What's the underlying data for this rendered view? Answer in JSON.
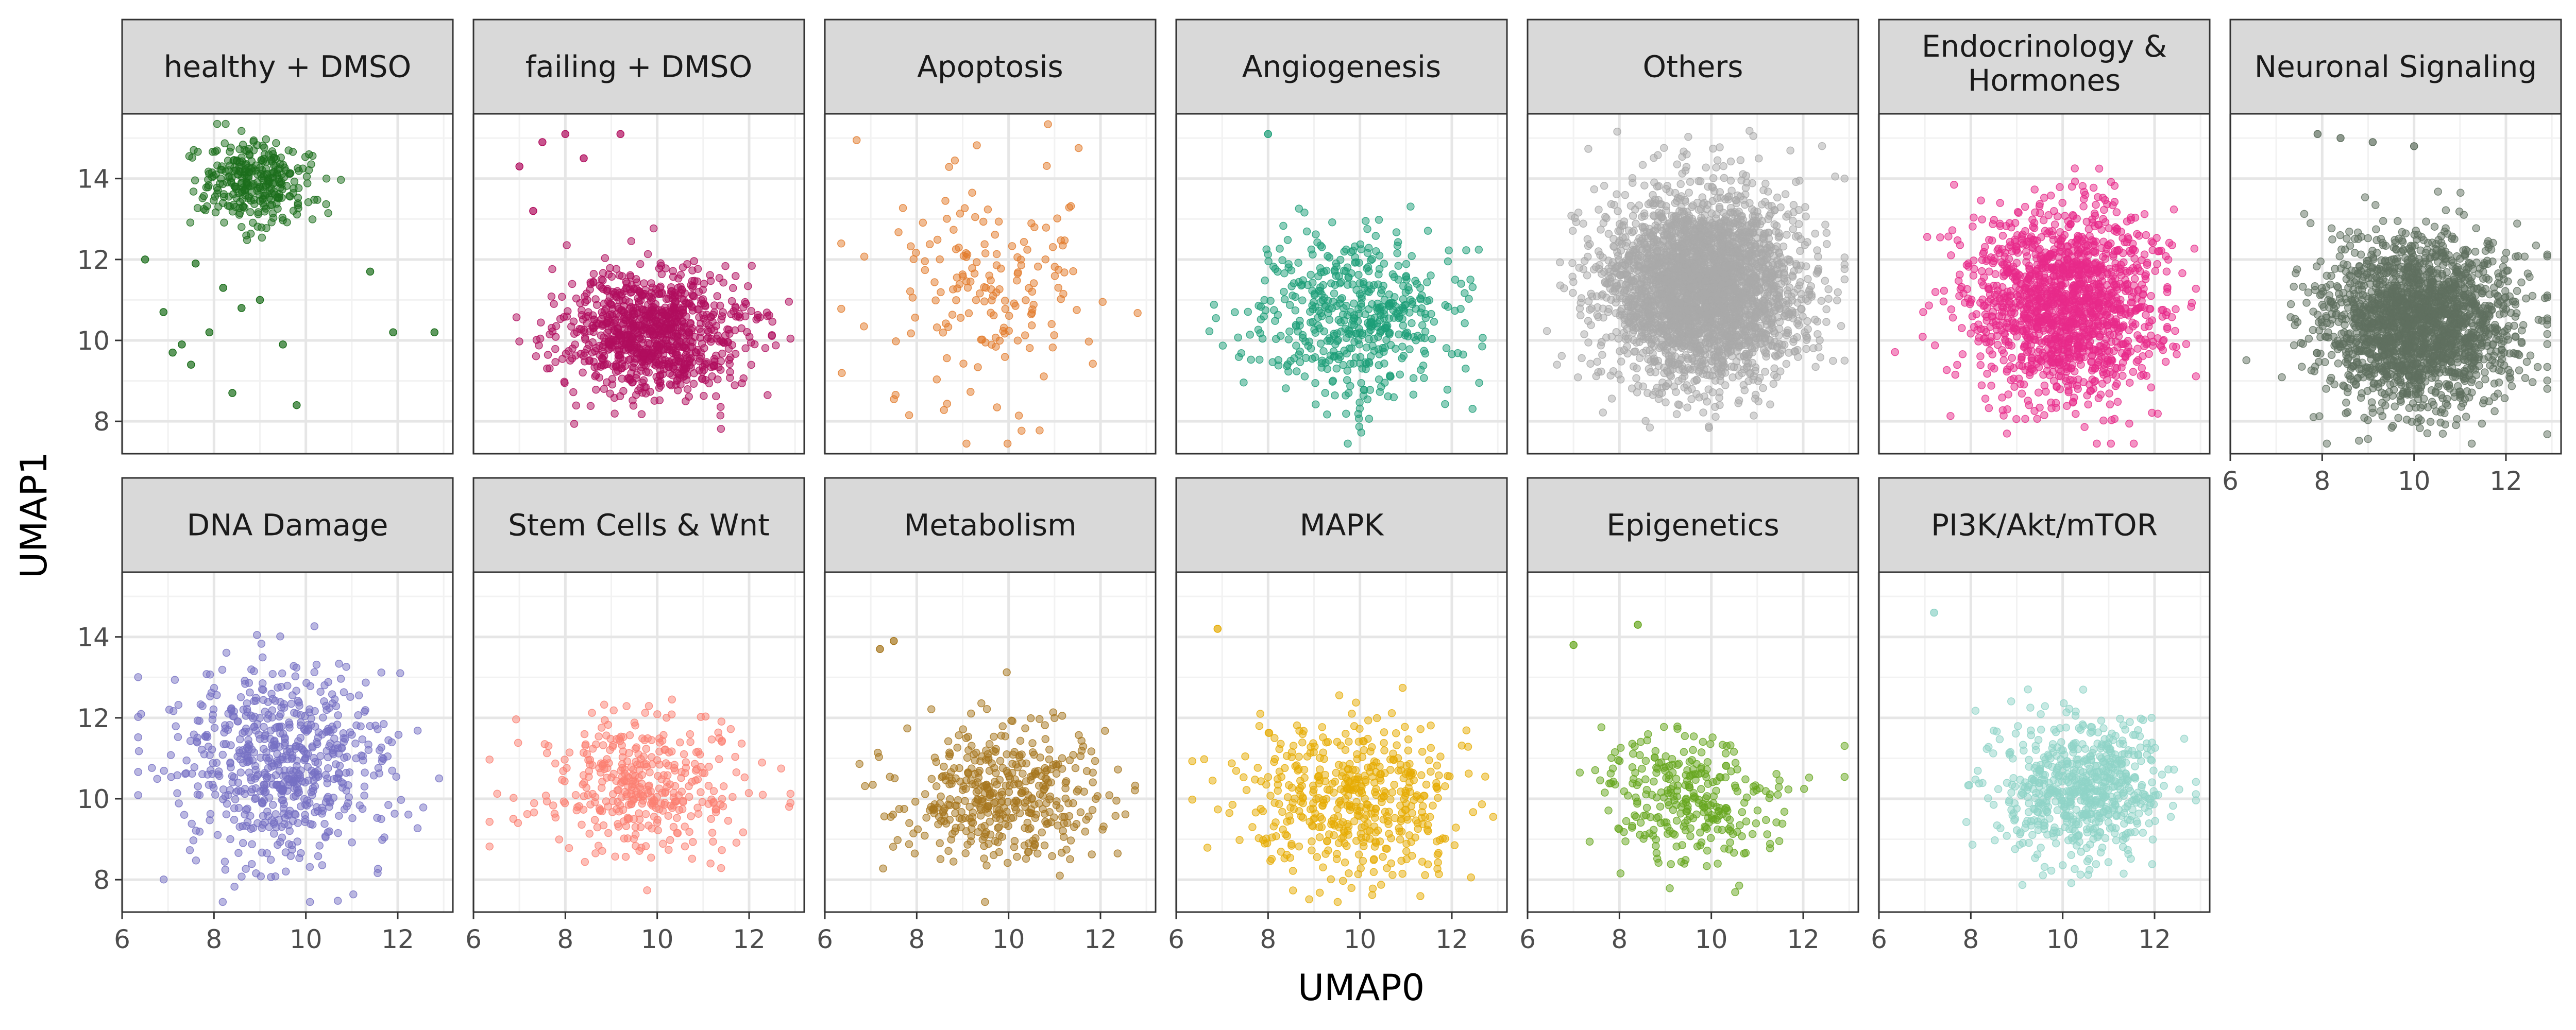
{
  "chart_data": {
    "type": "scatter",
    "xlabel": "UMAP0",
    "ylabel": "UMAP1",
    "xlim": [
      6,
      13.2
    ],
    "ylim": [
      7.2,
      15.6
    ],
    "x_ticks": [
      6,
      8,
      10,
      12
    ],
    "y_ticks": [
      8,
      10,
      12,
      14
    ],
    "grid": true,
    "facet_layout": "7 columns, 2 rows; shared axes",
    "panels": [
      {
        "title": "healthy + DMSO",
        "color": "#1b6e1b",
        "point_count": 300,
        "centroid": [
          8.9,
          13.9
        ],
        "spread": [
          0.8,
          0.75
        ],
        "outliers": [
          [
            6.5,
            12.0
          ],
          [
            6.9,
            10.7
          ],
          [
            7.1,
            9.7
          ],
          [
            7.3,
            9.9
          ],
          [
            7.5,
            9.4
          ],
          [
            7.6,
            11.9
          ],
          [
            7.9,
            10.2
          ],
          [
            8.2,
            11.3
          ],
          [
            8.4,
            8.7
          ],
          [
            8.6,
            10.8
          ],
          [
            9.0,
            11.0
          ],
          [
            9.5,
            9.9
          ],
          [
            9.8,
            8.4
          ],
          [
            11.4,
            11.7
          ],
          [
            11.9,
            10.2
          ],
          [
            12.8,
            10.2
          ]
        ]
      },
      {
        "title": "failing + DMSO",
        "color": "#b00d5e",
        "point_count": 950,
        "centroid": [
          9.9,
          10.2
        ],
        "spread": [
          1.4,
          1.1
        ],
        "outliers": [
          [
            7.0,
            14.3
          ],
          [
            7.5,
            14.9
          ],
          [
            8.0,
            15.1
          ],
          [
            8.4,
            14.5
          ],
          [
            9.2,
            15.1
          ],
          [
            7.3,
            13.2
          ]
        ]
      },
      {
        "title": "Apoptosis",
        "color": "#e27a2a",
        "point_count": 170,
        "centroid": [
          9.7,
          11.2
        ],
        "spread": [
          1.6,
          2.0
        ],
        "outliers": []
      },
      {
        "title": "Angiogenesis",
        "color": "#1b9e77",
        "point_count": 500,
        "centroid": [
          9.8,
          10.6
        ],
        "spread": [
          1.6,
          1.4
        ],
        "outliers": [
          [
            8.0,
            15.1
          ]
        ]
      },
      {
        "title": "Others",
        "color": "#a9a9a9",
        "point_count": 3000,
        "centroid": [
          9.8,
          11.3
        ],
        "spread": [
          1.5,
          1.6
        ],
        "outliers": []
      },
      {
        "title": "Endocrinology & Hormones",
        "color": "#e7298a",
        "point_count": 1500,
        "centroid": [
          10.0,
          10.9
        ],
        "spread": [
          1.5,
          1.6
        ],
        "outliers": []
      },
      {
        "title": "Neuronal Signaling",
        "color": "#5f6f5f",
        "point_count": 2000,
        "centroid": [
          10.1,
          10.4
        ],
        "spread": [
          1.5,
          1.4
        ],
        "outliers": [
          [
            7.9,
            15.1
          ],
          [
            8.4,
            15.0
          ],
          [
            9.1,
            14.9
          ],
          [
            10.0,
            14.8
          ]
        ]
      },
      {
        "title": "DNA Damage",
        "color": "#7570c3",
        "point_count": 650,
        "centroid": [
          9.5,
          10.8
        ],
        "spread": [
          1.6,
          1.7
        ],
        "outliers": []
      },
      {
        "title": "Stem Cells & Wnt",
        "color": "#fb8072",
        "point_count": 380,
        "centroid": [
          9.6,
          10.4
        ],
        "spread": [
          1.5,
          1.2
        ],
        "outliers": []
      },
      {
        "title": "Metabolism",
        "color": "#a6761d",
        "point_count": 420,
        "centroid": [
          9.9,
          10.0
        ],
        "spread": [
          1.5,
          1.2
        ],
        "outliers": [
          [
            7.2,
            13.7
          ],
          [
            7.5,
            13.9
          ]
        ]
      },
      {
        "title": "MAPK",
        "color": "#e6ab02",
        "point_count": 480,
        "centroid": [
          9.9,
          10.1
        ],
        "spread": [
          1.6,
          1.3
        ],
        "outliers": [
          [
            6.9,
            14.2
          ]
        ]
      },
      {
        "title": "Epigenetics",
        "color": "#66a61e",
        "point_count": 300,
        "centroid": [
          9.6,
          10.0
        ],
        "spread": [
          1.4,
          1.1
        ],
        "outliers": [
          [
            7.0,
            13.8
          ],
          [
            8.4,
            14.3
          ]
        ]
      },
      {
        "title": "PI3K/Akt/mTOR",
        "color": "#8fd3c7",
        "point_count": 650,
        "centroid": [
          10.4,
          10.3
        ],
        "spread": [
          1.3,
          1.2
        ],
        "outliers": [
          [
            7.2,
            14.6
          ]
        ]
      }
    ]
  }
}
